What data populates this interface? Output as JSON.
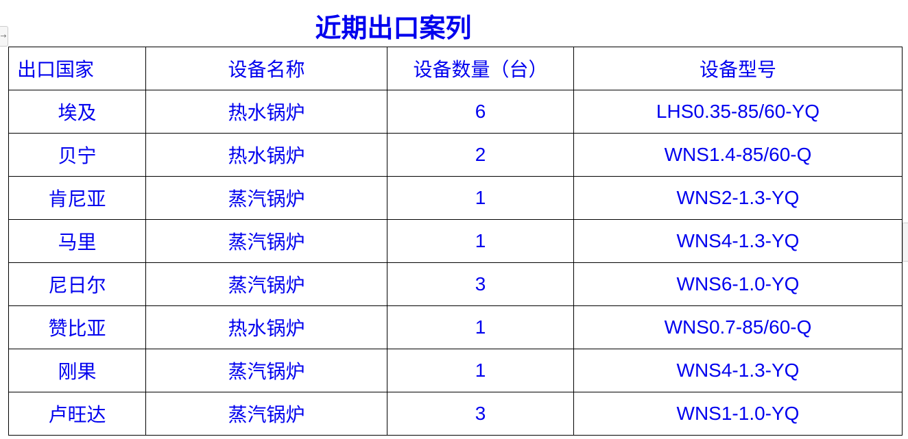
{
  "title": "近期出口案列",
  "headers": [
    "出口国家",
    "设备名称",
    "设备数量（台）",
    "设备型号"
  ],
  "rows": [
    [
      "埃及",
      "热水锅炉",
      "6",
      "LHS0.35-85/60-YQ"
    ],
    [
      "贝宁",
      "热水锅炉",
      "2",
      "WNS1.4-85/60-Q"
    ],
    [
      "肯尼亚",
      "蒸汽锅炉",
      "1",
      "WNS2-1.3-YQ"
    ],
    [
      "马里",
      "蒸汽锅炉",
      "1",
      "WNS4-1.3-YQ"
    ],
    [
      "尼日尔",
      "蒸汽锅炉",
      "3",
      "WNS6-1.0-YQ"
    ],
    [
      "赞比亚",
      "热水锅炉",
      "1",
      "WNS0.7-85/60-Q"
    ],
    [
      "刚果",
      "蒸汽锅炉",
      "1",
      "WNS4-1.3-YQ"
    ],
    [
      "卢旺达",
      "蒸汽锅炉",
      "3",
      "WNS1-1.0-YQ"
    ]
  ],
  "colors": {
    "text": "#0000ee",
    "border": "#000000"
  }
}
